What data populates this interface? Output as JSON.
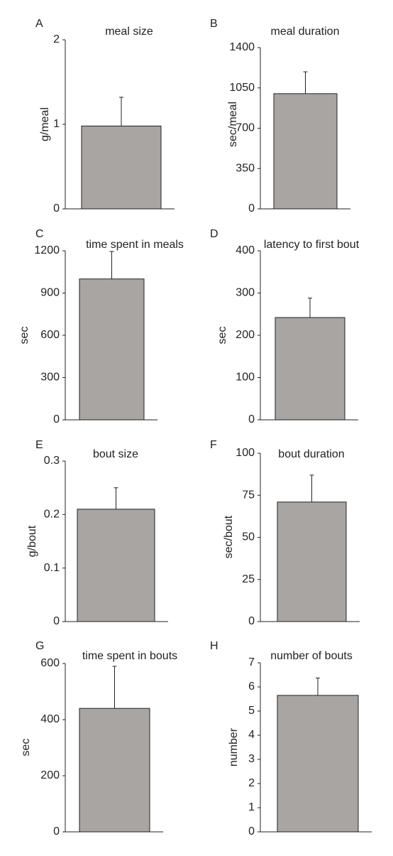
{
  "colors": {
    "bar": "#a9a5a3",
    "axis": "#222222",
    "bar_stroke": "#222222"
  },
  "chart_data": [
    {
      "panel": "A",
      "type": "bar",
      "title": "meal size",
      "ylabel": "g/meal",
      "ylim": [
        0,
        2
      ],
      "yticks": [
        "0",
        "1",
        "2"
      ],
      "values": [
        0.98
      ],
      "errors": [
        0.34
      ]
    },
    {
      "panel": "B",
      "type": "bar",
      "title": "meal duration",
      "ylabel": "sec/meal",
      "ylim": [
        0,
        1400
      ],
      "yticks": [
        "0",
        "350",
        "700",
        "1050",
        "1400"
      ],
      "values": [
        1000
      ],
      "errors": [
        190
      ]
    },
    {
      "panel": "C",
      "type": "bar",
      "title": "time spent in meals",
      "ylabel": "sec",
      "ylim": [
        0,
        1200
      ],
      "yticks": [
        "0",
        "300",
        "600",
        "900",
        "1200"
      ],
      "values": [
        1000
      ],
      "errors": [
        195
      ]
    },
    {
      "panel": "D",
      "type": "bar",
      "title": "latency to first bout",
      "ylabel": "sec",
      "ylim": [
        0,
        400
      ],
      "yticks": [
        "0",
        "100",
        "200",
        "300",
        "400"
      ],
      "values": [
        242
      ],
      "errors": [
        46
      ]
    },
    {
      "panel": "E",
      "type": "bar",
      "title": "bout size",
      "ylabel": "g/bout",
      "ylim": [
        0,
        0.3
      ],
      "yticks": [
        "0",
        "0.1",
        "0.2",
        "0.3"
      ],
      "values": [
        0.21
      ],
      "errors": [
        0.04
      ]
    },
    {
      "panel": "F",
      "type": "bar",
      "title": "bout duration",
      "ylabel": "sec/bout",
      "ylim": [
        0,
        100
      ],
      "yticks": [
        "0",
        "25",
        "50",
        "75",
        "100"
      ],
      "values": [
        71
      ],
      "errors": [
        16
      ]
    },
    {
      "panel": "G",
      "type": "bar",
      "title": "time spent in bouts",
      "ylabel": "sec",
      "ylim": [
        0,
        600
      ],
      "yticks": [
        "0",
        "200",
        "400",
        "600"
      ],
      "values": [
        440
      ],
      "errors": [
        150
      ]
    },
    {
      "panel": "H",
      "type": "bar",
      "title": "number of bouts",
      "ylabel": "number",
      "ylim": [
        0,
        7
      ],
      "yticks": [
        "0",
        "1",
        "2",
        "3",
        "4",
        "5",
        "6",
        "7"
      ],
      "values": [
        5.65
      ],
      "errors": [
        0.72
      ]
    }
  ]
}
